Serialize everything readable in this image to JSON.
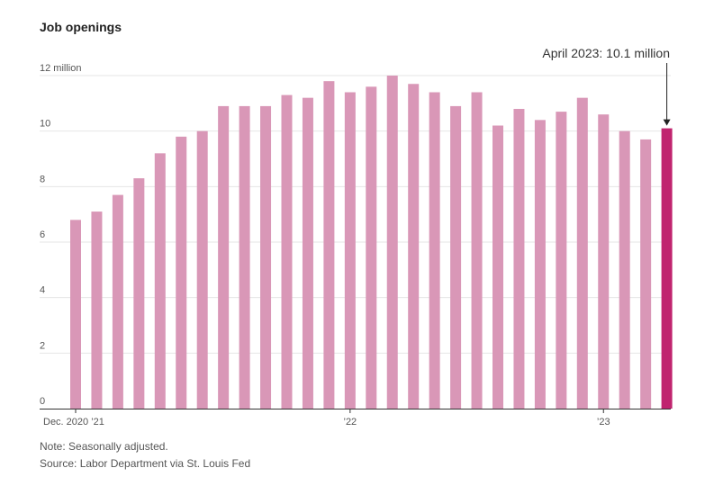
{
  "title": "Job openings",
  "note": "Note: Seasonally adjusted.",
  "source": "Source: Labor Department via St. Louis Fed",
  "colors": {
    "bar": "#d997b7",
    "highlight": "#c0246f",
    "grid": "#e6e6e6",
    "axis": "#333333"
  },
  "chart_data": {
    "type": "bar",
    "title": "Job openings",
    "ylabel": "",
    "xlabel": "",
    "ylim": [
      0,
      12
    ],
    "y_ticks": [
      {
        "value": 0,
        "label": "0"
      },
      {
        "value": 2,
        "label": "2"
      },
      {
        "value": 4,
        "label": "4"
      },
      {
        "value": 6,
        "label": "6"
      },
      {
        "value": 8,
        "label": "8"
      },
      {
        "value": 10,
        "label": "10"
      },
      {
        "value": 12,
        "label": "12 million"
      }
    ],
    "grid": true,
    "categories": [
      "Dec 2020",
      "Jan 2021",
      "Feb 2021",
      "Mar 2021",
      "Apr 2021",
      "May 2021",
      "Jun 2021",
      "Jul 2021",
      "Aug 2021",
      "Sep 2021",
      "Oct 2021",
      "Nov 2021",
      "Dec 2021",
      "Jan 2022",
      "Feb 2022",
      "Mar 2022",
      "Apr 2022",
      "May 2022",
      "Jun 2022",
      "Jul 2022",
      "Aug 2022",
      "Sep 2022",
      "Oct 2022",
      "Nov 2022",
      "Dec 2022",
      "Jan 2023",
      "Feb 2023",
      "Mar 2023",
      "Apr 2023"
    ],
    "values": [
      6.8,
      7.1,
      7.7,
      8.3,
      9.2,
      9.8,
      10.0,
      10.9,
      10.9,
      10.9,
      11.3,
      11.2,
      11.8,
      11.4,
      11.6,
      12.0,
      11.7,
      11.4,
      10.9,
      11.4,
      10.2,
      10.8,
      10.4,
      10.7,
      11.2,
      10.6,
      10.0,
      9.7,
      10.1
    ],
    "highlight_index": 28,
    "x_tick_labels": [
      {
        "index": 0,
        "label": "Dec. 2020 ’21"
      },
      {
        "index": 13,
        "label": "’22"
      },
      {
        "index": 25,
        "label": "’23"
      }
    ],
    "annotation": {
      "index": 28,
      "text": "April 2023: 10.1 million"
    }
  }
}
